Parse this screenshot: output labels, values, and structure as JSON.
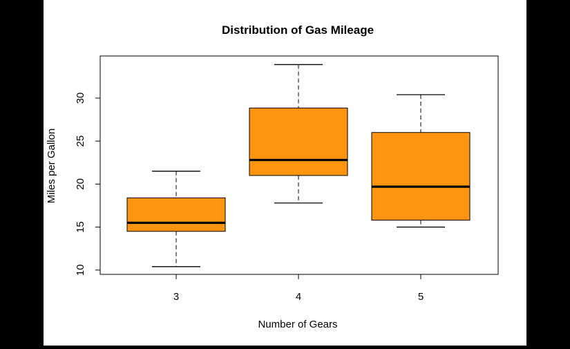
{
  "chart_data": {
    "type": "box",
    "title": "Distribution of Gas Mileage",
    "xlabel": "Number of Gears",
    "ylabel": "Miles per Gallon",
    "categories": [
      "3",
      "4",
      "5"
    ],
    "boxes": [
      {
        "category": "3",
        "min": 10.4,
        "q1": 14.5,
        "median": 15.5,
        "q3": 18.4,
        "max": 21.5
      },
      {
        "category": "4",
        "min": 17.8,
        "q1": 21.0,
        "median": 22.8,
        "q3": 28.85,
        "max": 33.9
      },
      {
        "category": "5",
        "min": 15.0,
        "q1": 15.8,
        "median": 19.7,
        "q3": 26.0,
        "max": 30.4
      }
    ],
    "yticks": [
      10,
      15,
      20,
      25,
      30
    ],
    "ylim": [
      9.5,
      34.9
    ],
    "box_color": "#ff9410",
    "grid": false,
    "legend": "none"
  }
}
